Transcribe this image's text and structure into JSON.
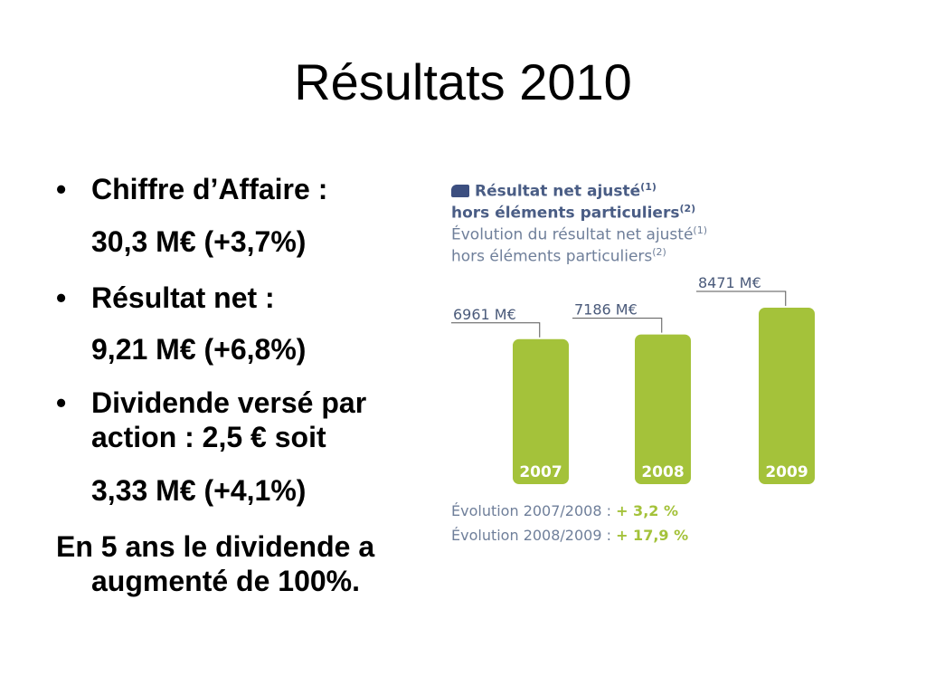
{
  "slide": {
    "title": "Résultats 2010"
  },
  "bullets": {
    "b1_label": "Chiffre d’Affaire  :",
    "b1_value": "30,3 M€ (+3,7%)",
    "b2_label": "Résultat net :",
    "b2_value": "9,21 M€ (+6,8%)",
    "b3_label": "Dividende versé par action : 2,5 € soit",
    "b3_value": "3,33 M€ (+4,1%)",
    "note": "En 5 ans le dividende a augmenté de 100%."
  },
  "chart_header": {
    "line1": "Résultat net ajusté",
    "line1_sup": "(1)",
    "line2": "hors éléments particuliers",
    "line2_sup": "(2)",
    "line3": "Évolution du résultat net ajusté",
    "line3_sup": "(1)",
    "line4": "hors éléments particuliers",
    "line4_sup": "(2)"
  },
  "chart_data": {
    "type": "bar",
    "title": "Résultat net ajusté hors éléments particuliers",
    "categories": [
      "2007",
      "2008",
      "2009"
    ],
    "values": [
      6961,
      7186,
      8471
    ],
    "data_labels": [
      "6961 M€",
      "7186 M€",
      "8471 M€"
    ],
    "unit": "M€",
    "bar_color": "#a4c23a",
    "legend_color": "#3c4f80",
    "grid": false,
    "ylim": [
      0,
      8471
    ]
  },
  "evolution": {
    "e1_label": "Évolution 2007/2008 : ",
    "e1_value": "+ 3,2 %",
    "e2_label": "Évolution 2008/2009 : ",
    "e2_value": "+ 17,9 %"
  }
}
